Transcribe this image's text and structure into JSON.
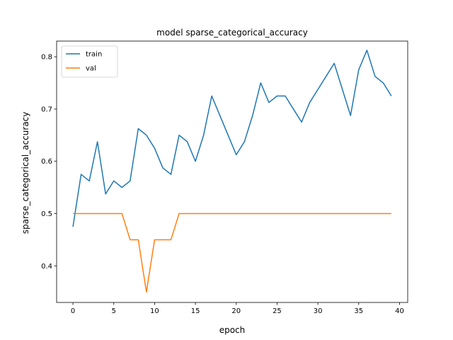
{
  "chart_data": {
    "type": "line",
    "title": "model sparse_categorical_accuracy",
    "xlabel": "epoch",
    "ylabel": "sparse_categorical_accuracy",
    "xlim": [
      -2,
      41
    ],
    "ylim": [
      0.33,
      0.83
    ],
    "xticks": [
      0,
      5,
      10,
      15,
      20,
      25,
      30,
      35,
      40
    ],
    "yticks": [
      0.4,
      0.5,
      0.6,
      0.7,
      0.8
    ],
    "grid": false,
    "legend_position": "top-left",
    "x": [
      0,
      1,
      2,
      3,
      4,
      5,
      6,
      7,
      8,
      9,
      10,
      11,
      12,
      13,
      14,
      15,
      16,
      17,
      18,
      19,
      20,
      21,
      22,
      23,
      24,
      25,
      26,
      27,
      28,
      29,
      30,
      31,
      32,
      33,
      34,
      35,
      36,
      37,
      38,
      39
    ],
    "series": [
      {
        "name": "train",
        "color": "#1f77b4",
        "values": [
          0.475,
          0.575,
          0.5625,
          0.6375,
          0.5375,
          0.5625,
          0.55,
          0.5625,
          0.6625,
          0.65,
          0.625,
          0.5875,
          0.575,
          0.65,
          0.6375,
          0.6,
          0.65,
          0.725,
          0.6875,
          0.65,
          0.6125,
          0.6375,
          0.6875,
          0.75,
          0.7125,
          0.725,
          0.725,
          0.7,
          0.675,
          0.7125,
          0.7375,
          0.7625,
          0.7875,
          0.7375,
          0.6875,
          0.775,
          0.8125,
          0.7625,
          0.75,
          0.725
        ]
      },
      {
        "name": "val",
        "color": "#ff7f0e",
        "values": [
          0.5,
          0.5,
          0.5,
          0.5,
          0.5,
          0.5,
          0.5,
          0.45,
          0.45,
          0.35,
          0.45,
          0.45,
          0.45,
          0.5,
          0.5,
          0.5,
          0.5,
          0.5,
          0.5,
          0.5,
          0.5,
          0.5,
          0.5,
          0.5,
          0.5,
          0.5,
          0.5,
          0.5,
          0.5,
          0.5,
          0.5,
          0.5,
          0.5,
          0.5,
          0.5,
          0.5,
          0.5,
          0.5,
          0.5,
          0.5
        ]
      }
    ]
  }
}
